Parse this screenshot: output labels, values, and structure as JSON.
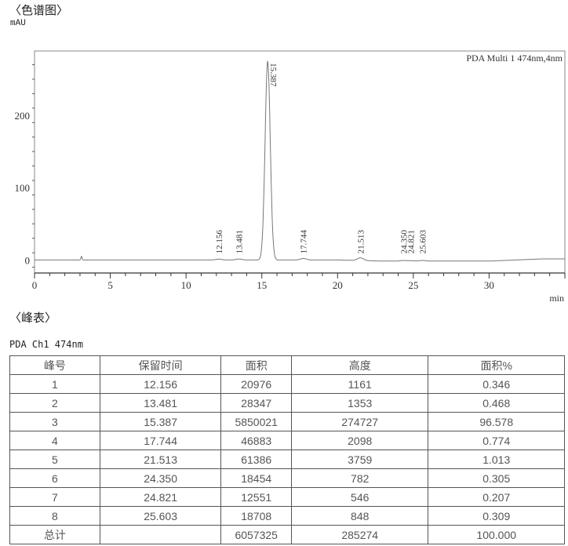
{
  "chart_title": "〈色谱图〉",
  "table_title": "〈峰表〉",
  "chart_data": {
    "type": "line",
    "ylabel": "mAU",
    "xlabel": "min",
    "legend": "PDA Multi 1 474nm,4nm",
    "legend_placement": "top-right",
    "xlim": [
      0,
      35
    ],
    "ylim": [
      -18,
      289
    ],
    "x_ticks": [
      0,
      5,
      10,
      15,
      20,
      25,
      30
    ],
    "y_ticks": [
      0,
      100,
      200
    ],
    "grid": false,
    "line_color": "#777777",
    "peaks": [
      {
        "label": "12.156",
        "rt": 12.156,
        "height": 1.161
      },
      {
        "label": "13.481",
        "rt": 13.481,
        "height": 1.353
      },
      {
        "label": "15.387",
        "rt": 15.387,
        "height": 274.727
      },
      {
        "label": "17.744",
        "rt": 17.744,
        "height": 2.098
      },
      {
        "label": "21.513",
        "rt": 21.513,
        "height": 3.759
      },
      {
        "label": "24.350",
        "rt": 24.35,
        "height": 0.782
      },
      {
        "label": "24.821",
        "rt": 24.821,
        "height": 0.546
      },
      {
        "label": "25.603",
        "rt": 25.603,
        "height": 0.848
      }
    ],
    "unlabeled_features": [
      {
        "rt": 3.1,
        "height": 5
      }
    ]
  },
  "peak_table": {
    "channel": "PDA Ch1 474nm",
    "headers": [
      "峰号",
      "保留时间",
      "面积",
      "高度",
      "面积%"
    ],
    "rows": [
      [
        "1",
        "12.156",
        "20976",
        "1161",
        "0.346"
      ],
      [
        "2",
        "13.481",
        "28347",
        "1353",
        "0.468"
      ],
      [
        "3",
        "15.387",
        "5850021",
        "274727",
        "96.578"
      ],
      [
        "4",
        "17.744",
        "46883",
        "2098",
        "0.774"
      ],
      [
        "5",
        "21.513",
        "61386",
        "3759",
        "1.013"
      ],
      [
        "6",
        "24.350",
        "18454",
        "782",
        "0.305"
      ],
      [
        "7",
        "24.821",
        "12551",
        "546",
        "0.207"
      ],
      [
        "8",
        "25.603",
        "18708",
        "848",
        "0.309"
      ]
    ],
    "total": [
      "总计",
      "",
      "6057325",
      "285274",
      "100.000"
    ]
  }
}
